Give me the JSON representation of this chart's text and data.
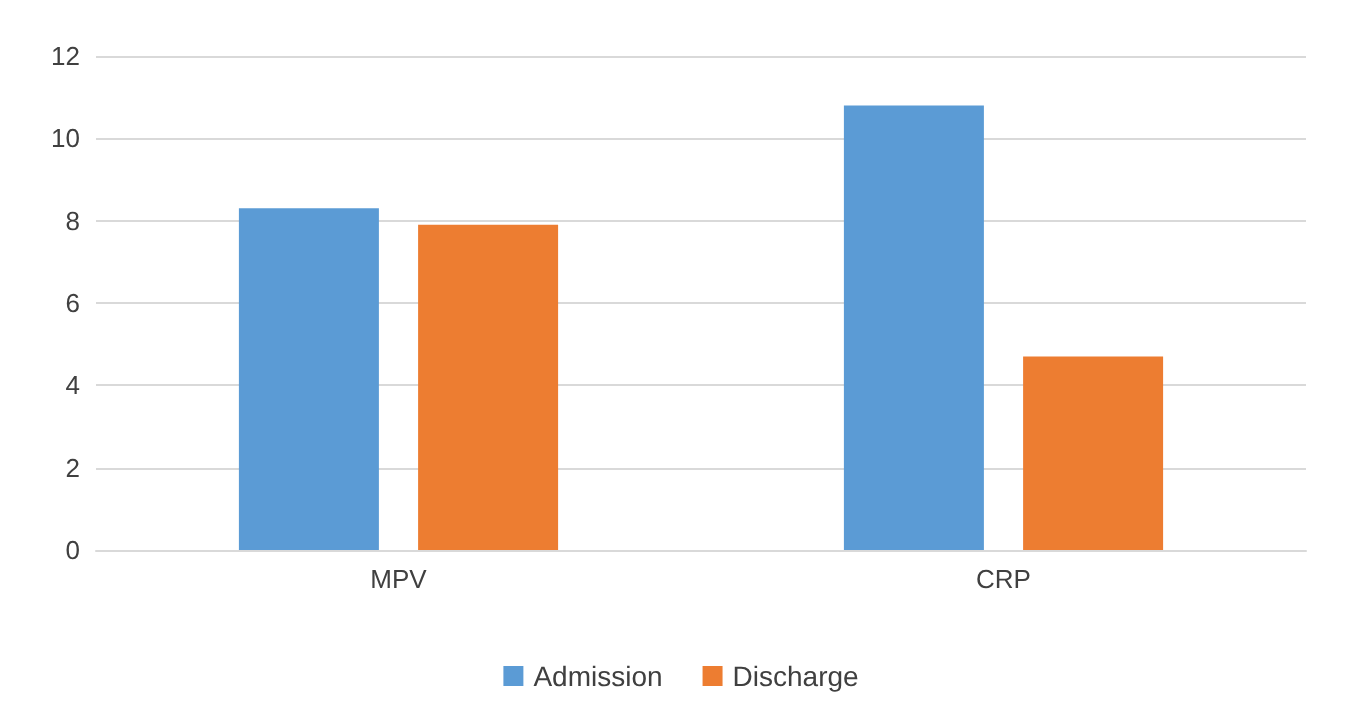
{
  "chart_data": {
    "type": "bar",
    "categories": [
      "MPV",
      "CRP"
    ],
    "series": [
      {
        "name": "Admission",
        "color": "#5b9bd5",
        "values": [
          8.3,
          10.8
        ]
      },
      {
        "name": "Discharge",
        "color": "#ed7d31",
        "values": [
          7.9,
          4.7
        ]
      }
    ],
    "ylim": [
      0,
      12
    ],
    "yticks": [
      0,
      2,
      4,
      6,
      8,
      10,
      12
    ],
    "grid": "y",
    "legend": "bottom"
  }
}
